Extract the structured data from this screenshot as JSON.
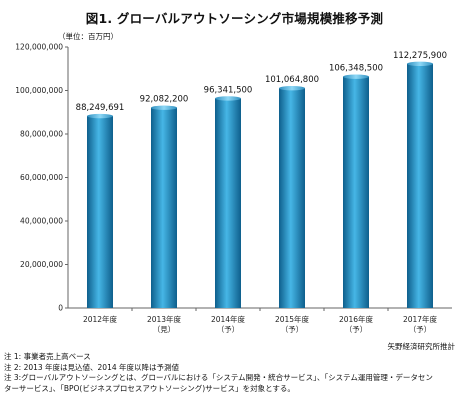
{
  "chart_data": {
    "type": "bar",
    "title": "図1. グローバルアウトソーシング市場規模推移予測",
    "unit_label": "（単位：百万円）",
    "categories": [
      [
        "2012年度"
      ],
      [
        "2013年度",
        "（見）"
      ],
      [
        "2014年度",
        "（予）"
      ],
      [
        "2015年度",
        "（予）"
      ],
      [
        "2016年度",
        "（予）"
      ],
      [
        "2017年度",
        "（予）"
      ]
    ],
    "values": [
      88249691,
      92082200,
      96341500,
      101064800,
      106348500,
      112275900
    ],
    "value_labels": [
      "88,249,691",
      "92,082,200",
      "96,341,500",
      "101,064,800",
      "106,348,500",
      "112,275,900"
    ],
    "yticks": [
      "0",
      "20,000,000",
      "40,000,000",
      "60,000,000",
      "80,000,000",
      "100,000,000",
      "120,000,000"
    ],
    "ylim": [
      0,
      120000000
    ],
    "grid": false,
    "bar_color": "#1f8fc4",
    "source": "矢野経済研究所推計",
    "notes": [
      "注 1: 事業者売上高ベース",
      "注 2: 2013 年度は見込値、2014 年度以降は予測値",
      "注 3:グローバルアウトソーシングとは、グローバルにおける「システム開発・統合サービス」、「システム運用管理・データセン",
      "ターサービス」、「BPO(ビジネスプロセスアウトソーシング)サービス」を対象とする。"
    ]
  }
}
